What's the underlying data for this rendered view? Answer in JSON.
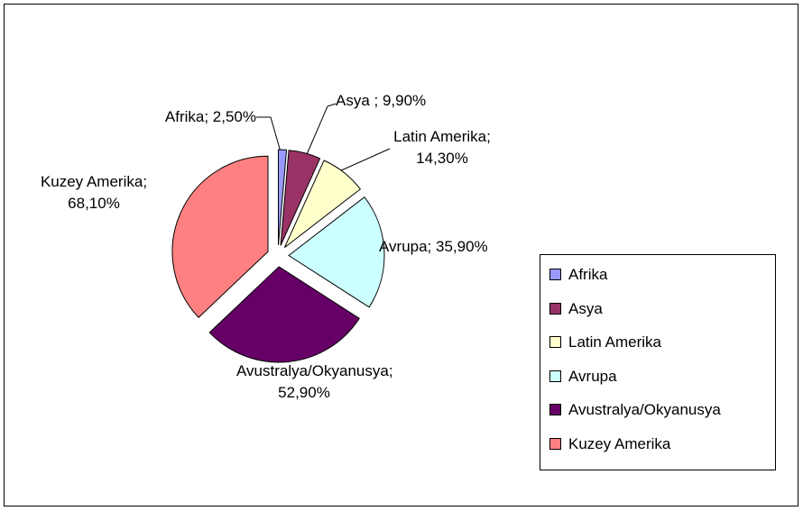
{
  "chart_data": {
    "type": "pie",
    "categories": [
      "Afrika",
      "Asya",
      "Latin Amerika",
      "Avrupa",
      "Avustralya/Okyanusya",
      "Kuzey Amerika"
    ],
    "values": [
      2.5,
      9.9,
      14.3,
      35.9,
      52.9,
      68.1
    ],
    "value_labels": [
      "Afrika; 2,50%",
      "Asya ; 9,90%",
      "Latin Amerika; 14,30%",
      "Avrupa; 35,90%",
      "Avustralya/Okyanusya; 52,90%",
      "Kuzey Amerika; 68,10%"
    ],
    "colors": [
      "#9999ff",
      "#993366",
      "#ffffcc",
      "#ccffff",
      "#660066",
      "#ff8080"
    ],
    "legend": "right"
  }
}
